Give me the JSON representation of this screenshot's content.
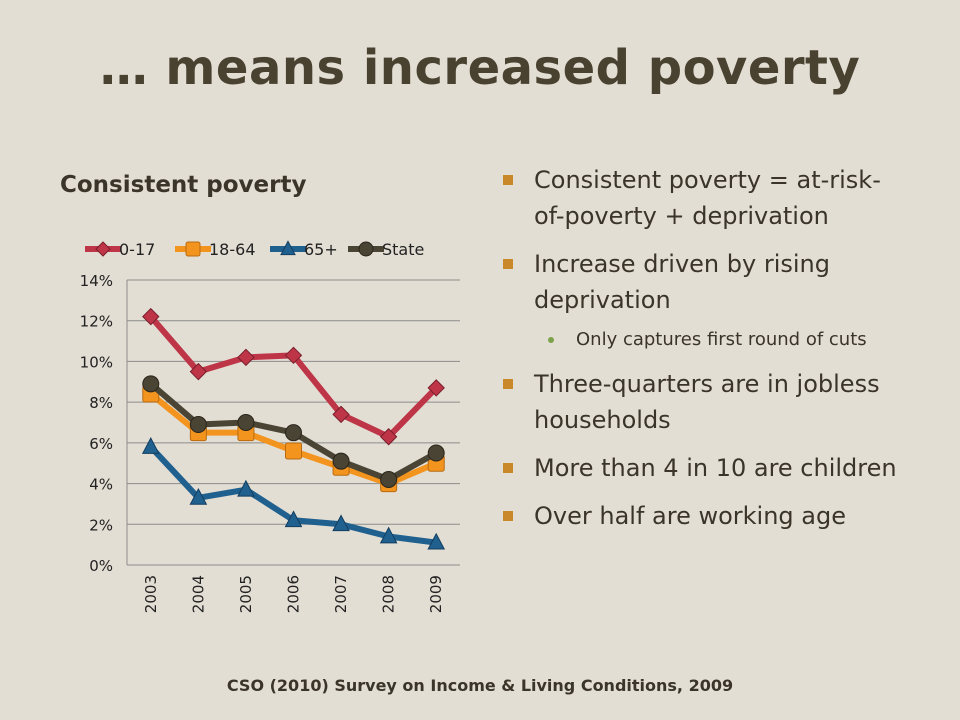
{
  "title": "… means increased poverty",
  "subtitle": "Consistent poverty",
  "bullets": [
    {
      "level": 1,
      "text": "Consistent poverty = at-risk-of-poverty + deprivation"
    },
    {
      "level": 1,
      "text": "Increase driven by rising deprivation"
    },
    {
      "level": 2,
      "text": "Only captures first round of cuts"
    },
    {
      "level": 1,
      "text": "Three-quarters are in jobless households"
    },
    {
      "level": 1,
      "text": "More than 4 in 10 are children"
    },
    {
      "level": 1,
      "text": "Over half are working age"
    }
  ],
  "source": "CSO (2010) Survey on Income & Living Conditions, 2009",
  "colors": {
    "accent": "#c9882a",
    "sub_bullet": "#7ca34a"
  },
  "chart_data": {
    "type": "line",
    "x": [
      "2003",
      "2004",
      "2005",
      "2006",
      "2007",
      "2008",
      "2009"
    ],
    "ylim": [
      0,
      14
    ],
    "yticks": [
      "0%",
      "2%",
      "4%",
      "6%",
      "8%",
      "10%",
      "12%",
      "14%"
    ],
    "grid": true,
    "legend": "top",
    "series": [
      {
        "name": "0-17",
        "values": [
          12.2,
          9.5,
          10.2,
          10.3,
          7.4,
          6.3,
          8.7
        ],
        "color": "#be3548",
        "marker": "diamond"
      },
      {
        "name": "18-64",
        "values": [
          8.4,
          6.5,
          6.5,
          5.6,
          4.8,
          4.0,
          5.0
        ],
        "color": "#f3941e",
        "marker": "square"
      },
      {
        "name": "65+",
        "values": [
          5.8,
          3.3,
          3.7,
          2.2,
          2.0,
          1.4,
          1.1
        ],
        "color": "#20608f",
        "marker": "triangle"
      },
      {
        "name": "State",
        "values": [
          8.9,
          6.9,
          7.0,
          6.5,
          5.1,
          4.2,
          5.5
        ],
        "color": "#4a4434",
        "marker": "circle"
      }
    ]
  }
}
